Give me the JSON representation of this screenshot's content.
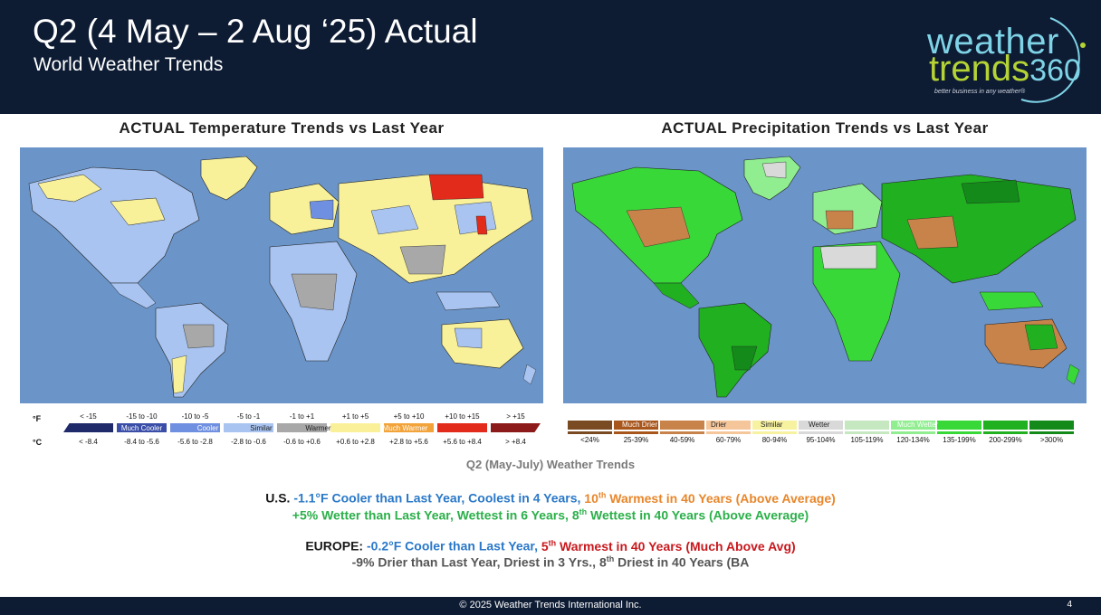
{
  "header": {
    "title": "Q2 (4 May – 2 Aug ‘25) Actual",
    "subtitle": "World Weather Trends",
    "logo": {
      "line1": "weather",
      "line2": "trends",
      "line2_num": "360",
      "tagline": "better business in any weather®"
    }
  },
  "temp_map": {
    "title": "ACTUAL Temperature Trends vs Last Year"
  },
  "precip_map": {
    "title": "ACTUAL Precipitation Trends vs Last Year"
  },
  "temp_legend": {
    "unit_f": "°F",
    "unit_c": "°C",
    "f_ranges": [
      "< -15",
      "-15 to -10",
      "-10 to -5",
      "-5 to -1",
      "-1 to +1",
      "+1 to +5",
      "+5 to +10",
      "+10 to +15",
      "> +15"
    ],
    "c_ranges": [
      "< -8.4",
      "-8.4 to -5.6",
      "-5.6 to -2.8",
      "-2.8 to -0.6",
      "-0.6 to +0.6",
      "+0.6 to +2.8",
      "+2.8 to +5.6",
      "+5.6 to +8.4",
      "> +8.4"
    ],
    "colors": [
      "#1f2a6b",
      "#3a4ea8",
      "#6f8fe0",
      "#a9c4f0",
      "#a8a8a8",
      "#fbf09a",
      "#f2a33a",
      "#e32b1c",
      "#8c1a1a"
    ],
    "categories": [
      "Much Cooler",
      "Cooler",
      "Similar",
      "Warmer",
      "Much Warmer"
    ]
  },
  "precip_legend": {
    "ranges": [
      "<24%",
      "25-39%",
      "40-59%",
      "60-79%",
      "80-94%",
      "95-104%",
      "105-119%",
      "120-134%",
      "135-199%",
      "200-299%",
      ">300%"
    ],
    "colors": [
      "#7a4a22",
      "#a8561c",
      "#c8834a",
      "#f5c69a",
      "#f7f2a0",
      "#d9d9d9",
      "#c6e8c0",
      "#90ee90",
      "#38d838",
      "#20b020",
      "#138a1a"
    ],
    "categories": [
      "Much Drier",
      "Drier",
      "Similar",
      "Wetter",
      "Much Wetter"
    ]
  },
  "summary": {
    "heading": "Q2 (May-July) Weather Trends",
    "us_label": "U.S.",
    "us_temp_cool": "-1.1°F Cooler than Last Year, Coolest in 4 Years,",
    "us_temp_rank_num": "10",
    "us_temp_rank_sup": "th",
    "us_temp_rank_text": "Warmest in 40 Years (Above Average)",
    "us_precip_pre": "+5% Wetter than Last Year, Wettest in 6 Years, 8",
    "us_precip_sup": "th",
    "us_precip_post": "Wettest in 40 Years (Above Average)",
    "eu_label": "EUROPE:",
    "eu_temp_cool": "-0.2°F Cooler than Last Year,",
    "eu_temp_rank_num": "5",
    "eu_temp_rank_sup": "th",
    "eu_temp_rank_text": "Warmest in 40 Years (Much Above Avg)",
    "eu_precip_pre": "-9% Drier than Last Year, Driest in 3 Yrs., 8",
    "eu_precip_sup": "th",
    "eu_precip_post": "Driest in 40 Years (BA"
  },
  "footer": {
    "copyright": "© 2025 Weather Trends International Inc.",
    "page": "4"
  }
}
